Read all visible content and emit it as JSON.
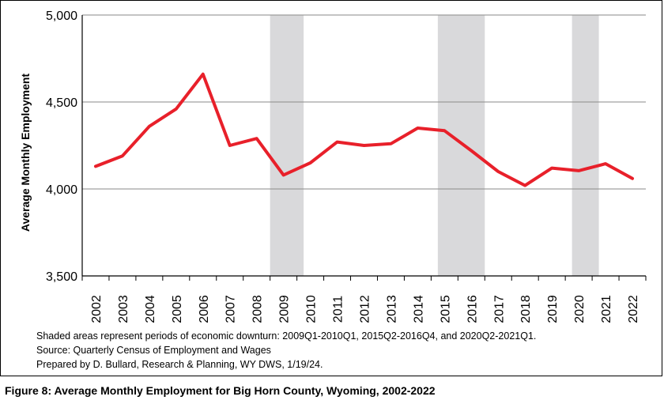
{
  "chart_data": {
    "type": "line",
    "ylabel": "Average Monthly Employment",
    "xlabel": "",
    "ylim": [
      3500,
      5000
    ],
    "yticks": [
      "3,500",
      "4,000",
      "4,500",
      "5,000"
    ],
    "ytick_values": [
      3500,
      4000,
      4500,
      5000
    ],
    "categories": [
      "2002",
      "2003",
      "2004",
      "2005",
      "2006",
      "2007",
      "2008",
      "2009",
      "2010",
      "2011",
      "2012",
      "2013",
      "2014",
      "2015",
      "2016",
      "2017",
      "2018",
      "2019",
      "2020",
      "2021",
      "2022"
    ],
    "x": [
      2002,
      2002.5,
      2003,
      2003.5,
      2004,
      2004.5,
      2005,
      2005.5,
      2006,
      2006.5,
      2007,
      2007.5,
      2008,
      2008.5,
      2009,
      2009.5,
      2010,
      2010.5,
      2011,
      2011.5,
      2012,
      2012.5,
      2013,
      2013.5,
      2014,
      2014.5,
      2015,
      2015.5,
      2016,
      2016.5,
      2017,
      2017.5,
      2018,
      2018.5,
      2019,
      2019.5,
      2020,
      2020.5,
      2021,
      2021.5,
      2022
    ],
    "series": [
      {
        "color": "#e8202a",
        "values": [
          4130,
          4190,
          4360,
          4460,
          4660,
          4250,
          4290,
          4080,
          4150,
          4270,
          4250,
          4260,
          4350,
          4335,
          4220,
          4100,
          4020,
          4120,
          4105,
          4145,
          4060
        ],
        "x_values": [
          2002.5,
          2003.5,
          2004.5,
          2005.5,
          2006.5,
          2007.5,
          2008.5,
          2009.5,
          2010.5,
          2011.5,
          2012.5,
          2013.5,
          2014.5,
          2015.5,
          2016.5,
          2017.5,
          2018.5,
          2019.5,
          2020.5,
          2021.5,
          2022.5
        ]
      }
    ],
    "shaded_periods": [
      {
        "start": 2009.0,
        "end": 2010.25,
        "label": "2009Q1-2010Q1"
      },
      {
        "start": 2015.25,
        "end": 2017.0,
        "label": "2015Q2-2016Q4"
      },
      {
        "start": 2020.25,
        "end": 2021.25,
        "label": "2020Q2-2021Q1"
      }
    ],
    "shade_color": "#d9d9db",
    "grid": true
  },
  "notes": {
    "shaded": "Shaded areas represent periods of economic downturn: 2009Q1-2010Q1, 2015Q2-2016Q4, and 2020Q2-2021Q1.",
    "source": "Source: Quarterly Census of Employment and Wages",
    "prepared": "Prepared by D. Bullard, Research & Planning, WY DWS, 1/19/24."
  },
  "caption": "Figure 8: Average Monthly Employment for Big Horn County, Wyoming, 2002-2022"
}
